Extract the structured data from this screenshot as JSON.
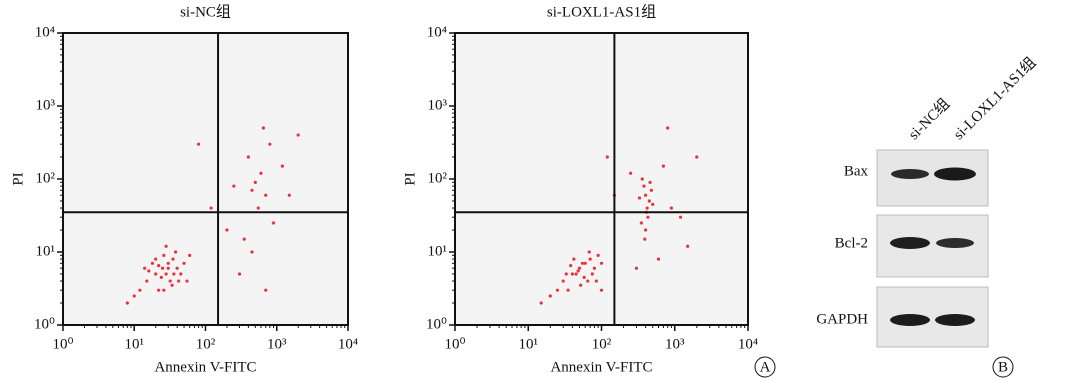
{
  "chart_data": [
    {
      "type": "scatter",
      "title": "si-NC组",
      "xlabel": "Annexin V-FITC",
      "ylabel": "PI",
      "color": "#e8323c",
      "log_x": true,
      "log_y": true,
      "xlim": [
        1,
        10000
      ],
      "ylim": [
        1,
        10000
      ],
      "xticks": [
        {
          "value": 1,
          "label": "10⁰"
        },
        {
          "value": 10,
          "label": "10¹"
        },
        {
          "value": 100,
          "label": "10²"
        },
        {
          "value": 1000,
          "label": "10³"
        },
        {
          "value": 10000,
          "label": "10⁴"
        }
      ],
      "yticks": [
        {
          "value": 1,
          "label": "10⁰"
        },
        {
          "value": 10,
          "label": "10¹"
        },
        {
          "value": 100,
          "label": "10²"
        },
        {
          "value": 1000,
          "label": "10³"
        },
        {
          "value": 10000,
          "label": "10⁴"
        }
      ],
      "quadrant": {
        "x": 150,
        "y": 35
      },
      "x": [
        20,
        25,
        30,
        15,
        35,
        28,
        22,
        40,
        18,
        32,
        26,
        45,
        12,
        38,
        24,
        30,
        16,
        50,
        20,
        34,
        28,
        10,
        42,
        22,
        60,
        8,
        36,
        26,
        14,
        55,
        500,
        450,
        600,
        400,
        700,
        350,
        800,
        550,
        300,
        900,
        1200,
        650,
        250,
        80,
        120,
        1500,
        450,
        2000,
        700,
        200
      ],
      "values": [
        5,
        6,
        7,
        4,
        8,
        5,
        3,
        6,
        7,
        4,
        9,
        5,
        3,
        10,
        4.5,
        6,
        5.5,
        7,
        8,
        3.5,
        12,
        2.5,
        4,
        6.5,
        9,
        2,
        5,
        3,
        6,
        4,
        90,
        70,
        120,
        200,
        60,
        15,
        300,
        40,
        5,
        25,
        150,
        500,
        80,
        300,
        40,
        60,
        10,
        400,
        3,
        20
      ]
    },
    {
      "type": "scatter",
      "title": "si-LOXL1-AS1组",
      "xlabel": "Annexin V-FITC",
      "ylabel": "PI",
      "color": "#e8323c",
      "log_x": true,
      "log_y": true,
      "xlim": [
        1,
        10000
      ],
      "ylim": [
        1,
        10000
      ],
      "xticks": [
        {
          "value": 1,
          "label": "10⁰"
        },
        {
          "value": 10,
          "label": "10¹"
        },
        {
          "value": 100,
          "label": "10²"
        },
        {
          "value": 1000,
          "label": "10³"
        },
        {
          "value": 10000,
          "label": "10⁴"
        }
      ],
      "yticks": [
        {
          "value": 1,
          "label": "10⁰"
        },
        {
          "value": 10,
          "label": "10¹"
        },
        {
          "value": 100,
          "label": "10²"
        },
        {
          "value": 1000,
          "label": "10³"
        },
        {
          "value": 10000,
          "label": "10⁴"
        }
      ],
      "quadrant": {
        "x": 150,
        "y": 35
      },
      "x": [
        40,
        50,
        60,
        30,
        70,
        45,
        35,
        80,
        55,
        65,
        25,
        90,
        48,
        38,
        75,
        20,
        58,
        42,
        100,
        33,
        68,
        15,
        52,
        85,
        400,
        450,
        380,
        420,
        350,
        480,
        400,
        430,
        360,
        500,
        390,
        460,
        410,
        330,
        700,
        900,
        250,
        150,
        1200,
        600,
        2000,
        800,
        120,
        1500,
        300,
        100
      ],
      "values": [
        5,
        6,
        7,
        4,
        8,
        5,
        3,
        6,
        7,
        4,
        3,
        9,
        5.5,
        6.5,
        5,
        2.5,
        4.5,
        8,
        7,
        5,
        10,
        2,
        3.5,
        4,
        60,
        50,
        80,
        40,
        25,
        70,
        20,
        30,
        100,
        45,
        15,
        90,
        35,
        55,
        150,
        40,
        120,
        60,
        30,
        8,
        200,
        500,
        200,
        12,
        6,
        3
      ]
    }
  ],
  "blot": {
    "lanes": [
      "si-NC组",
      "si-LOXL1-AS1组"
    ],
    "rows": [
      "Bax",
      "Bcl-2",
      "GAPDH"
    ]
  },
  "panel_labels": [
    "A",
    "B"
  ]
}
